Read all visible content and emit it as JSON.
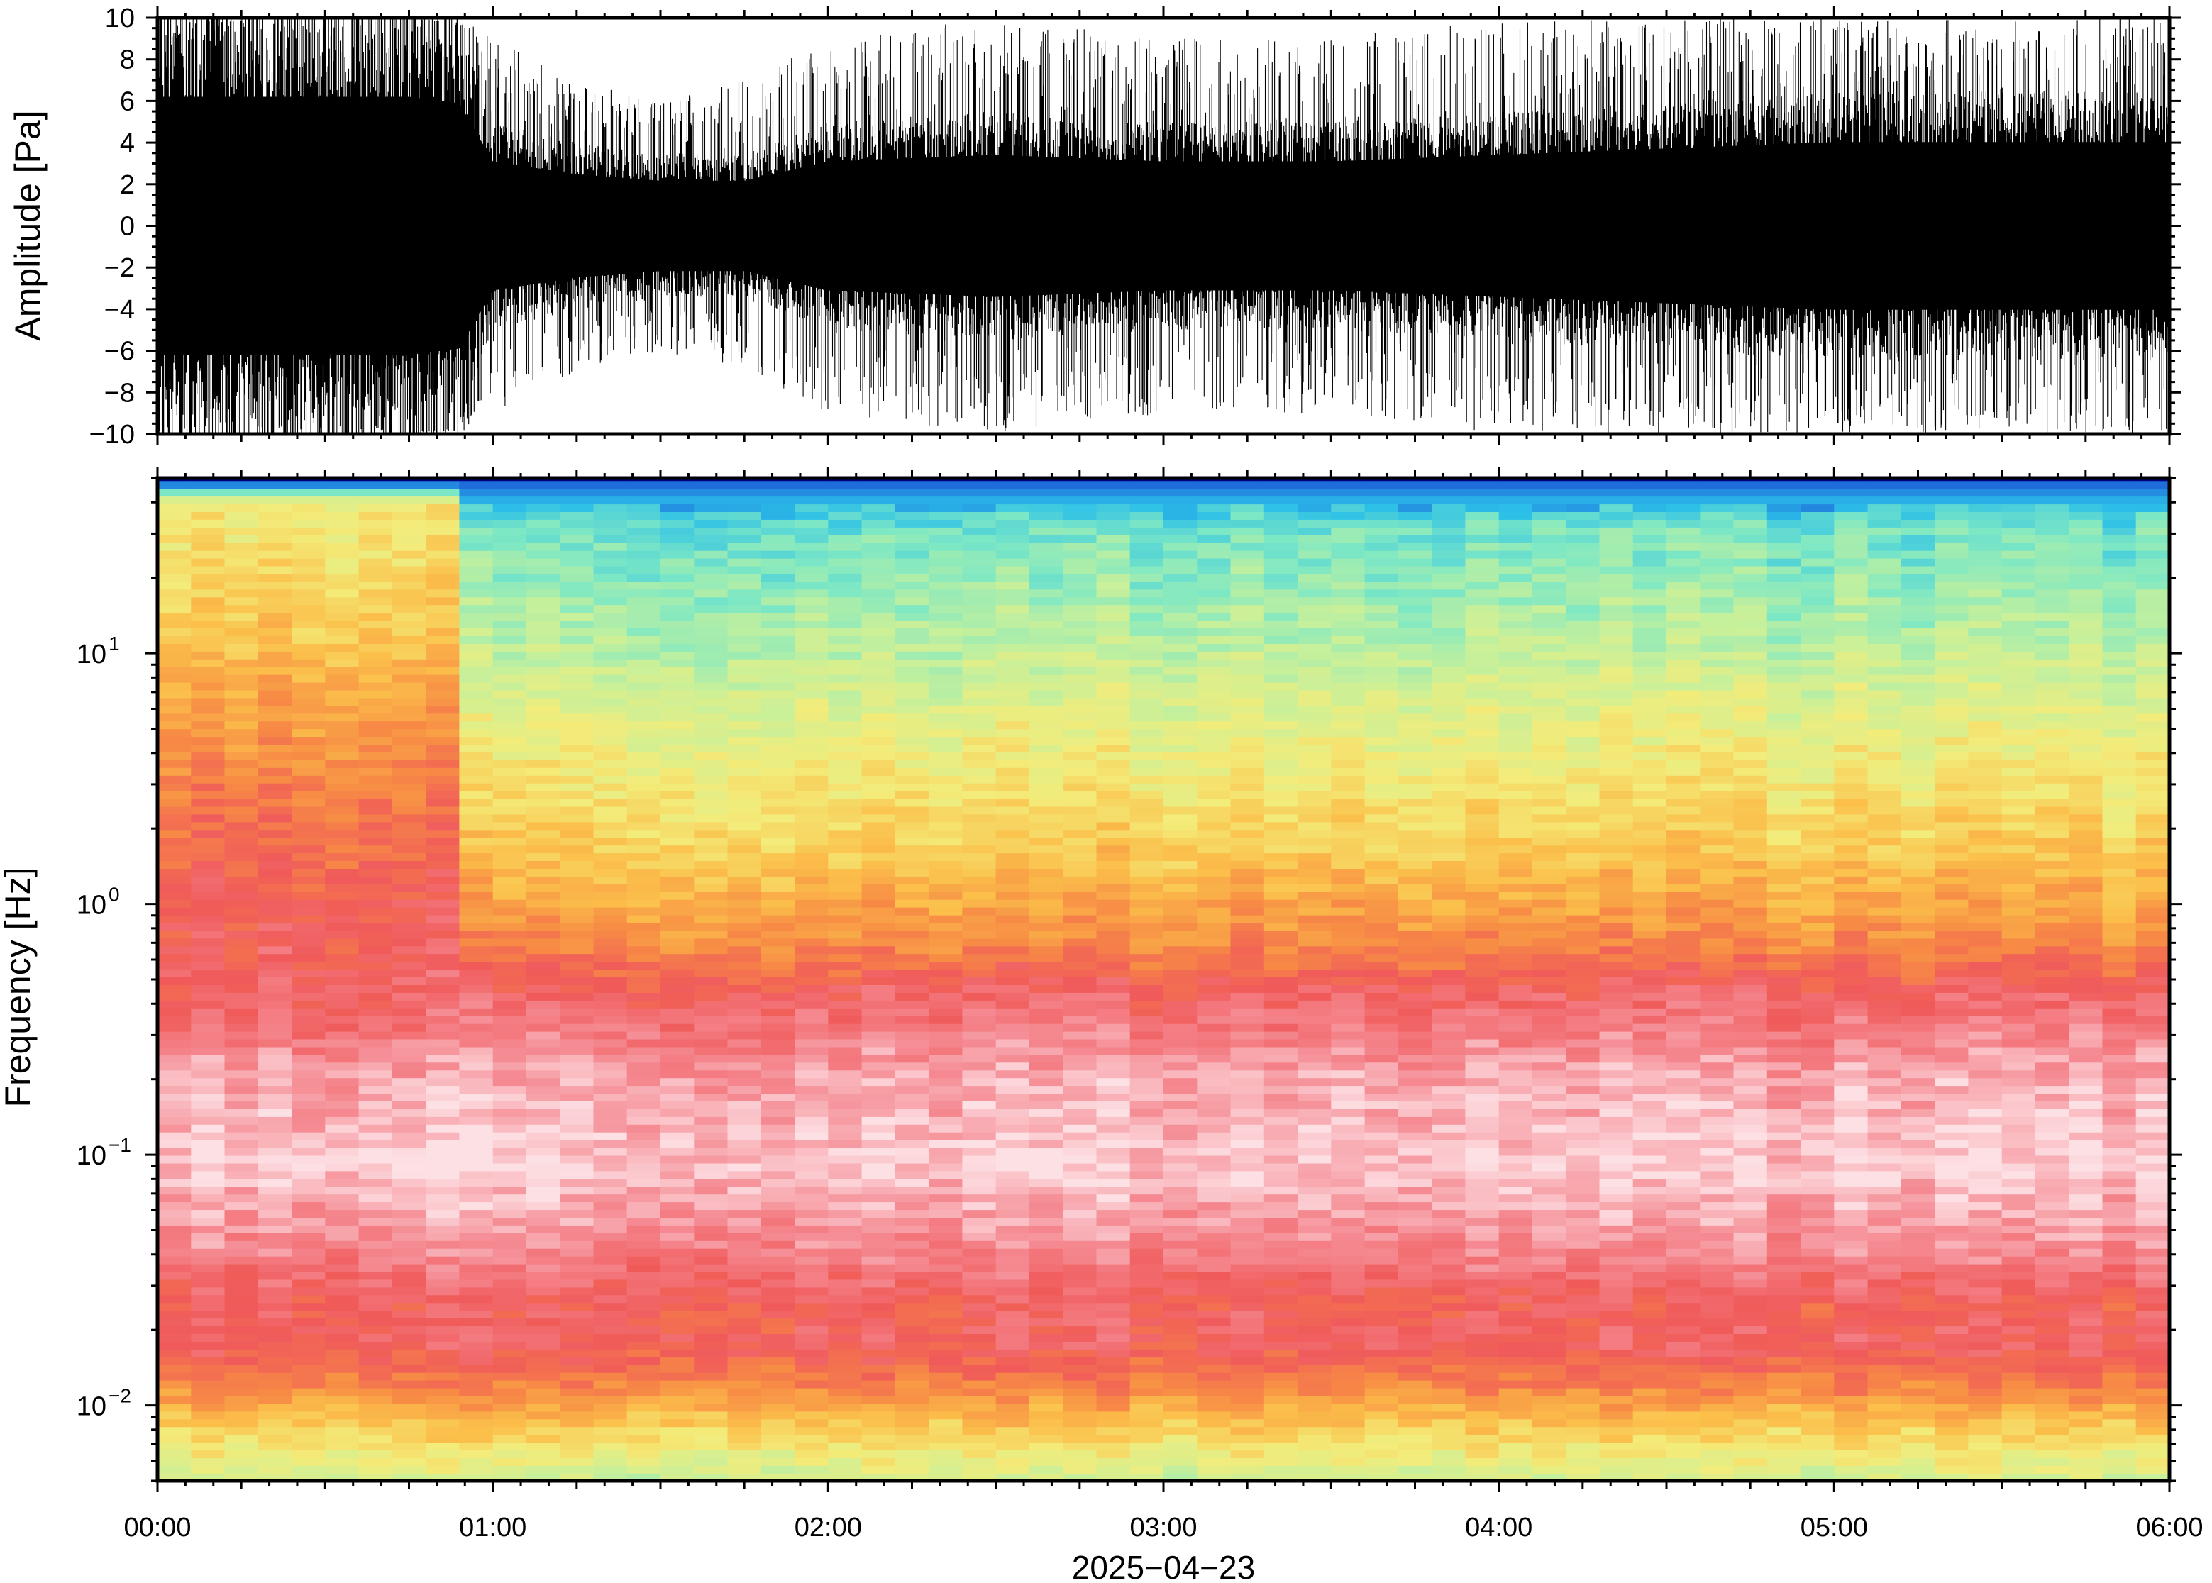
{
  "chart_data": [
    {
      "type": "line",
      "title": "",
      "xlabel": "",
      "ylabel": "Amplitude [Pa]",
      "ylim": [
        -10,
        10
      ],
      "yticks": [
        "10",
        "8",
        "6",
        "4",
        "2",
        "0",
        "−2",
        "−4",
        "−6",
        "−8",
        "−10"
      ],
      "ytick_values": [
        10,
        8,
        6,
        4,
        2,
        0,
        -2,
        -4,
        -6,
        -8,
        -10
      ],
      "xlim_hours": [
        0,
        6
      ],
      "line_color": "#000000",
      "series": [
        {
          "time_hours": [
            0,
            0.25,
            0.5,
            0.75,
            0.9,
            1.0,
            1.25,
            1.5,
            1.75,
            2.0,
            2.5,
            3.0,
            3.5,
            4.0,
            4.5,
            5.0,
            5.5,
            6.0
          ],
          "envelope_pa": [
            10,
            10,
            10,
            10,
            9.5,
            5,
            4,
            3.5,
            3.5,
            5,
            5.5,
            5,
            5,
            5.5,
            6,
            6.5,
            6.5,
            6.5
          ],
          "peak_pa": [
            10,
            10,
            10,
            10,
            10,
            9,
            7,
            6,
            7,
            9,
            10,
            9,
            9,
            10,
            10,
            10,
            10,
            10
          ]
        }
      ]
    },
    {
      "type": "heatmap",
      "title": "",
      "xlabel": "2025−04−23",
      "ylabel": "Frequency [Hz]",
      "yscale": "log",
      "ylim": [
        0.005,
        50
      ],
      "ytick_values": [
        0.01,
        0.1,
        1,
        10
      ],
      "ytick_labels": [
        {
          "base": "10",
          "exp": "−2"
        },
        {
          "base": "10",
          "exp": "−1"
        },
        {
          "base": "10",
          "exp": "0"
        },
        {
          "base": "10",
          "exp": "1"
        }
      ],
      "x_ticks": [
        "00:00",
        "01:00",
        "02:00",
        "03:00",
        "04:00",
        "05:00",
        "06:00"
      ],
      "xlim_hours": [
        0,
        6
      ],
      "colormap": [
        "#00007f",
        "#1a4fd8",
        "#2cc0e8",
        "#7ee8c4",
        "#c8f09a",
        "#f3ec7a",
        "#fbbf4a",
        "#f78a45",
        "#f05a5a",
        "#f58a92",
        "#fde0e4"
      ],
      "spectrum_profiles": [
        {
          "segment": "00:00–00:57",
          "log10_freq": [
            -2.3,
            -2.1,
            -1.9,
            -1.75,
            -1.6,
            -1.35,
            -1.05,
            -0.7,
            -0.4,
            0.0,
            0.4,
            0.9,
            1.2,
            1.6,
            1.68,
            1.7
          ],
          "colormap_index": [
            4.2,
            5.6,
            7.3,
            8.2,
            8.0,
            9.0,
            9.8,
            9.4,
            8.3,
            8.0,
            7.4,
            6.3,
            5.6,
            5.0,
            1.2,
            0
          ]
        },
        {
          "segment": "00:57–06:00",
          "log10_freq": [
            -2.3,
            -2.1,
            -1.9,
            -1.75,
            -1.6,
            -1.35,
            -1.05,
            -0.7,
            -0.35,
            -0.15,
            0.2,
            0.7,
            1.1,
            1.5,
            1.68,
            1.7
          ],
          "colormap_index": [
            4.2,
            5.6,
            7.3,
            8.2,
            8.0,
            9.0,
            9.8,
            9.4,
            8.2,
            7.0,
            5.8,
            4.7,
            3.7,
            2.9,
            1.2,
            0
          ]
        }
      ]
    }
  ]
}
